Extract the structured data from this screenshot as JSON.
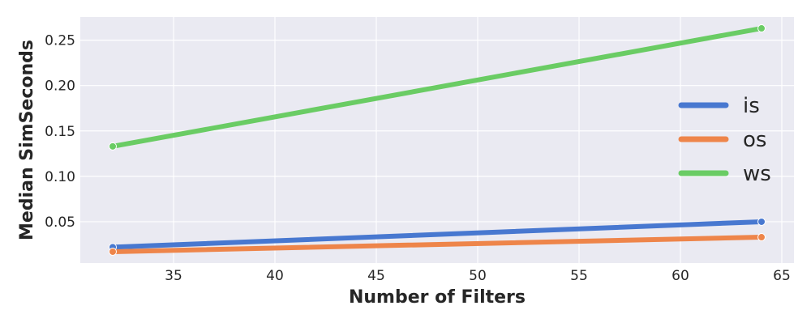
{
  "chart_data": {
    "type": "line",
    "title": "",
    "xlabel": "Number of Filters",
    "ylabel": "Median SimSeconds",
    "xlim": [
      30.4,
      65.6
    ],
    "ylim": [
      0.0045,
      0.2755
    ],
    "xticks": [
      35,
      40,
      45,
      50,
      55,
      60,
      65
    ],
    "yticks": [
      0.05,
      0.1,
      0.15,
      0.2,
      0.25
    ],
    "xtick_labels": [
      "35",
      "40",
      "45",
      "50",
      "55",
      "60",
      "65"
    ],
    "ytick_labels": [
      "0.05",
      "0.10",
      "0.15",
      "0.20",
      "0.25"
    ],
    "grid": true,
    "legend_position": "center-right",
    "background_color": "#eaeaf2",
    "series": [
      {
        "name": "is",
        "color": "#4878d0",
        "x": [
          32,
          64
        ],
        "y": [
          0.022,
          0.05
        ]
      },
      {
        "name": "os",
        "color": "#ee854a",
        "x": [
          32,
          64
        ],
        "y": [
          0.017,
          0.033
        ]
      },
      {
        "name": "ws",
        "color": "#6acc64",
        "x": [
          32,
          64
        ],
        "y": [
          0.133,
          0.263
        ]
      }
    ]
  }
}
